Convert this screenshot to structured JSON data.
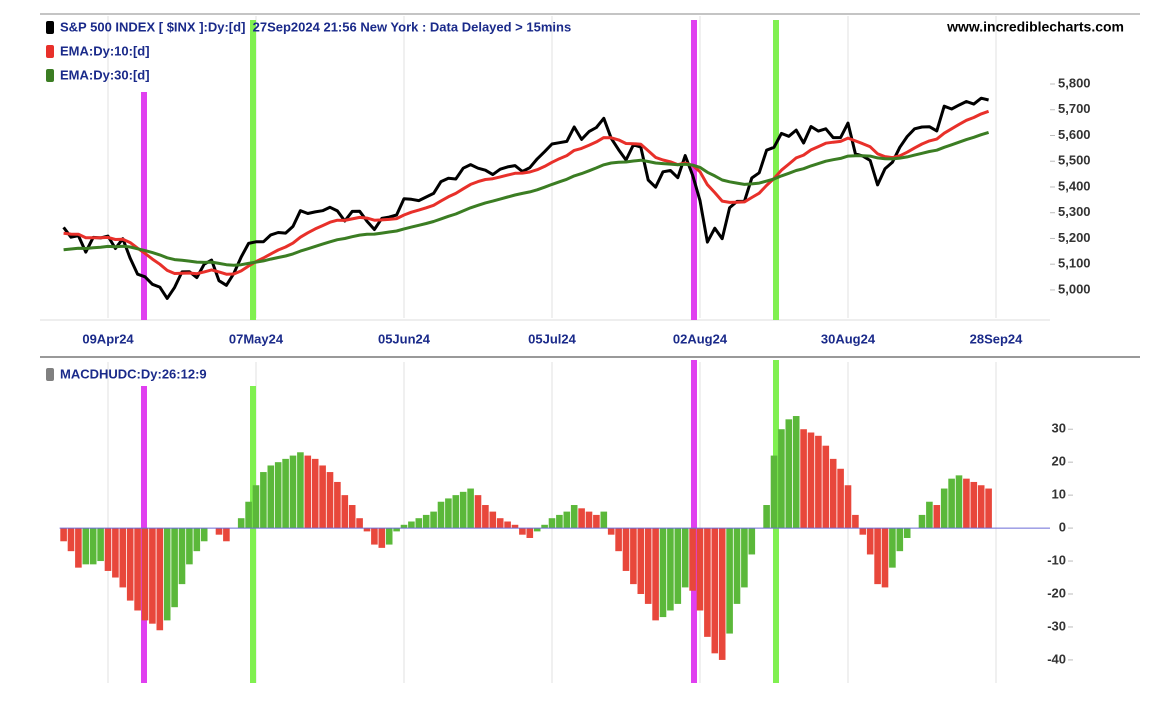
{
  "chart_data": [
    {
      "type": "line",
      "source": "www.incrediblecharts.com",
      "categories": [
        null,
        null,
        null,
        null,
        null,
        null,
        "09Apr24",
        null,
        null,
        null,
        null,
        null,
        null,
        null,
        null,
        null,
        null,
        null,
        null,
        null,
        null,
        null,
        null,
        null,
        null,
        null,
        "07May24",
        null,
        null,
        null,
        null,
        null,
        null,
        null,
        null,
        null,
        null,
        null,
        null,
        null,
        null,
        null,
        null,
        null,
        null,
        null,
        "05Jun24",
        null,
        null,
        null,
        null,
        null,
        null,
        null,
        null,
        null,
        null,
        null,
        null,
        null,
        null,
        null,
        null,
        null,
        null,
        null,
        "05Jul24",
        null,
        null,
        null,
        null,
        null,
        null,
        null,
        null,
        null,
        null,
        null,
        null,
        null,
        null,
        null,
        null,
        null,
        null,
        null,
        "02Aug24",
        null,
        null,
        null,
        null,
        null,
        null,
        null,
        null,
        null,
        null,
        null,
        null,
        null,
        null,
        null,
        null,
        null,
        null,
        null,
        "30Aug24",
        null,
        null,
        null,
        null,
        null,
        null,
        null,
        null,
        null,
        null,
        null,
        null,
        null,
        null,
        null,
        null,
        null,
        null,
        null,
        "28Sep24"
      ],
      "series": [
        {
          "name": "S&P 500 INDEX [ $INX ]:Dy:[d]  27Sep2024 21:56 New York : Data Delayed > 15mins",
          "color": "#000000",
          "values": [
            5243,
            5205,
            5211,
            5147,
            5204,
            5202,
            5209,
            5161,
            5199,
            5123,
            5061,
            5051,
            5022,
            5011,
            4967,
            5010,
            5070,
            5071,
            5048,
            5100,
            5116,
            5036,
            5018,
            5064,
            5128,
            5181,
            5187,
            5187,
            5214,
            5223,
            5221,
            5247,
            5308,
            5297,
            5303,
            5308,
            5321,
            5307,
            5268,
            5305,
            5306,
            5267,
            5235,
            5278,
            5283,
            5291,
            5354,
            5352,
            5347,
            5361,
            5375,
            5421,
            5434,
            5431,
            5473,
            5487,
            5473,
            5465,
            5448,
            5469,
            5478,
            5483,
            5460,
            5475,
            5509,
            5537,
            5567,
            5572,
            5577,
            5633,
            5585,
            5615,
            5631,
            5667,
            5589,
            5545,
            5505,
            5564,
            5555,
            5427,
            5399,
            5459,
            5464,
            5436,
            5522,
            5446,
            5347,
            5186,
            5240,
            5199,
            5319,
            5344,
            5344,
            5435,
            5455,
            5543,
            5554,
            5608,
            5597,
            5621,
            5571,
            5635,
            5617,
            5626,
            5592,
            5592,
            5648,
            5529,
            5520,
            5503,
            5408,
            5471,
            5496,
            5554,
            5596,
            5626,
            5633,
            5634,
            5618,
            5714,
            5703,
            5718,
            5732,
            5722,
            5745,
            5738,
            null
          ]
        },
        {
          "name": "EMA:Dy:10:[d]",
          "color": "#e8302a",
          "values": [
            5220,
            5217,
            5216,
            5203,
            5203,
            5203,
            5204,
            5196,
            5197,
            5184,
            5162,
            5142,
            5120,
            5100,
            5076,
            5064,
            5065,
            5066,
            5063,
            5070,
            5078,
            5070,
            5061,
            5062,
            5074,
            5093,
            5110,
            5124,
            5140,
            5155,
            5167,
            5182,
            5205,
            5222,
            5237,
            5250,
            5263,
            5271,
            5270,
            5276,
            5282,
            5279,
            5271,
            5272,
            5274,
            5277,
            5291,
            5302,
            5310,
            5319,
            5329,
            5346,
            5362,
            5375,
            5393,
            5410,
            5421,
            5429,
            5432,
            5439,
            5446,
            5453,
            5454,
            5458,
            5467,
            5480,
            5496,
            5510,
            5522,
            5542,
            5550,
            5562,
            5575,
            5592,
            5591,
            5583,
            5569,
            5568,
            5566,
            5541,
            5515,
            5505,
            5498,
            5487,
            5493,
            5484,
            5459,
            5409,
            5378,
            5345,
            5340,
            5341,
            5342,
            5359,
            5376,
            5406,
            5433,
            5465,
            5489,
            5513,
            5524,
            5544,
            5557,
            5570,
            5574,
            5577,
            5590,
            5579,
            5568,
            5556,
            5529,
            5518,
            5514,
            5521,
            5535,
            5552,
            5567,
            5579,
            5586,
            5609,
            5626,
            5643,
            5659,
            5670,
            5684,
            5694,
            null
          ]
        },
        {
          "name": "EMA:Dy:30:[d]",
          "color": "#3b7d23",
          "values": [
            5156,
            5159,
            5162,
            5161,
            5164,
            5166,
            5169,
            5168,
            5170,
            5167,
            5160,
            5153,
            5145,
            5136,
            5125,
            5118,
            5115,
            5112,
            5108,
            5107,
            5108,
            5103,
            5098,
            5096,
            5098,
            5103,
            5108,
            5113,
            5120,
            5126,
            5132,
            5140,
            5151,
            5160,
            5169,
            5178,
            5187,
            5195,
            5200,
            5207,
            5213,
            5216,
            5217,
            5221,
            5225,
            5229,
            5237,
            5244,
            5251,
            5258,
            5266,
            5276,
            5286,
            5295,
            5307,
            5319,
            5329,
            5338,
            5345,
            5353,
            5361,
            5369,
            5375,
            5381,
            5389,
            5399,
            5410,
            5420,
            5430,
            5443,
            5452,
            5463,
            5474,
            5486,
            5493,
            5496,
            5497,
            5501,
            5504,
            5499,
            5493,
            5491,
            5489,
            5486,
            5488,
            5485,
            5476,
            5457,
            5443,
            5427,
            5420,
            5415,
            5410,
            5412,
            5415,
            5423,
            5431,
            5443,
            5453,
            5464,
            5471,
            5482,
            5491,
            5500,
            5506,
            5511,
            5520,
            5521,
            5521,
            5520,
            5513,
            5510,
            5509,
            5512,
            5517,
            5524,
            5531,
            5538,
            5543,
            5554,
            5564,
            5574,
            5584,
            5593,
            5603,
            5612,
            null
          ]
        }
      ],
      "ylim": [
        4891,
        6072
      ],
      "yticks": [
        {
          "value": 5000,
          "label": "5,000"
        },
        {
          "value": 5100,
          "label": "5,100"
        },
        {
          "value": 5200,
          "label": "5,200"
        },
        {
          "value": 5300,
          "label": "5,300"
        },
        {
          "value": 5400,
          "label": "5,400"
        },
        {
          "value": 5500,
          "label": "5,500"
        },
        {
          "value": 5600,
          "label": "5,600"
        },
        {
          "value": 5700,
          "label": "5,700"
        },
        {
          "value": 5800,
          "label": "5,800"
        }
      ],
      "grid": "x"
    },
    {
      "type": "bar",
      "series": [
        {
          "name": "MACDHUDC:Dy:26:12:9",
          "color": "#808080",
          "up_color": "#5bb83a",
          "down_color": "#e8473b",
          "values": [
            -4,
            -7,
            -12,
            -11,
            -11,
            -10,
            -13,
            -15,
            -18,
            -22,
            -25,
            -28,
            -29,
            -31,
            -28,
            -24,
            -17,
            -11,
            -7,
            -4,
            0,
            -2,
            -4,
            0,
            3,
            8,
            13,
            17,
            19,
            20,
            21,
            22,
            23,
            22,
            21,
            19,
            17,
            14,
            10,
            7,
            3,
            -1,
            -5,
            -6,
            -5,
            -1,
            1,
            2,
            3,
            4,
            5,
            8,
            9,
            10,
            11,
            12,
            10,
            7,
            5,
            3,
            2,
            1,
            -2,
            -3,
            -1,
            1,
            3,
            4,
            5,
            7,
            6,
            5,
            4,
            5,
            -2,
            -7,
            -13,
            -17,
            -20,
            -23,
            -28,
            -27,
            -25,
            -23,
            -18,
            -19,
            -25,
            -33,
            -38,
            -40,
            -32,
            -23,
            -18,
            -8,
            0,
            7,
            22,
            30,
            33,
            34,
            30,
            29,
            28,
            25,
            21,
            18,
            13,
            4,
            -2,
            -8,
            -17,
            -18,
            -12,
            -7,
            -3,
            0,
            4,
            8,
            7,
            12,
            15,
            16,
            15,
            14,
            13,
            12,
            null
          ]
        }
      ],
      "baseline_color": "#6b6bd6",
      "ylim": [
        -47,
        51
      ],
      "yticks": [
        30,
        20,
        10,
        0,
        -10,
        -20,
        -30,
        -40
      ],
      "grid": "x"
    }
  ]
}
